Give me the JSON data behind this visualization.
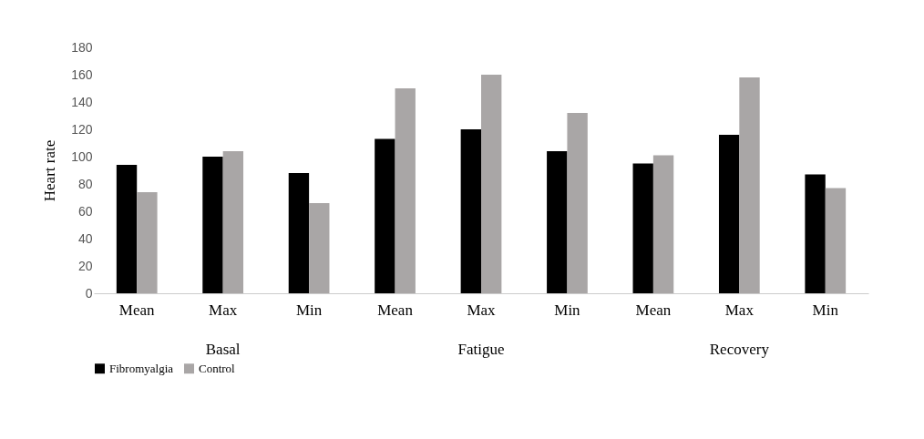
{
  "chart_data": {
    "type": "bar",
    "ylabel": "Heart rate",
    "categories": [
      "Mean",
      "Max",
      "Min",
      "Mean",
      "Max",
      "Min",
      "Mean",
      "Max",
      "Min"
    ],
    "ylim": [
      0,
      180
    ],
    "yticks": [
      0,
      20,
      40,
      60,
      80,
      100,
      120,
      140,
      160,
      180
    ],
    "legend": "bottom",
    "annotations": [
      "Basal",
      "Fatigue",
      "Recovery"
    ],
    "series": [
      {
        "name": "Fibromyalgia",
        "color": "#000000",
        "values": [
          94,
          100,
          88,
          113,
          120,
          104,
          95,
          116,
          87
        ]
      },
      {
        "name": "Control",
        "color": "#a9a6a6",
        "values": [
          74,
          104,
          66,
          150,
          160,
          132,
          101,
          158,
          77
        ]
      }
    ]
  }
}
